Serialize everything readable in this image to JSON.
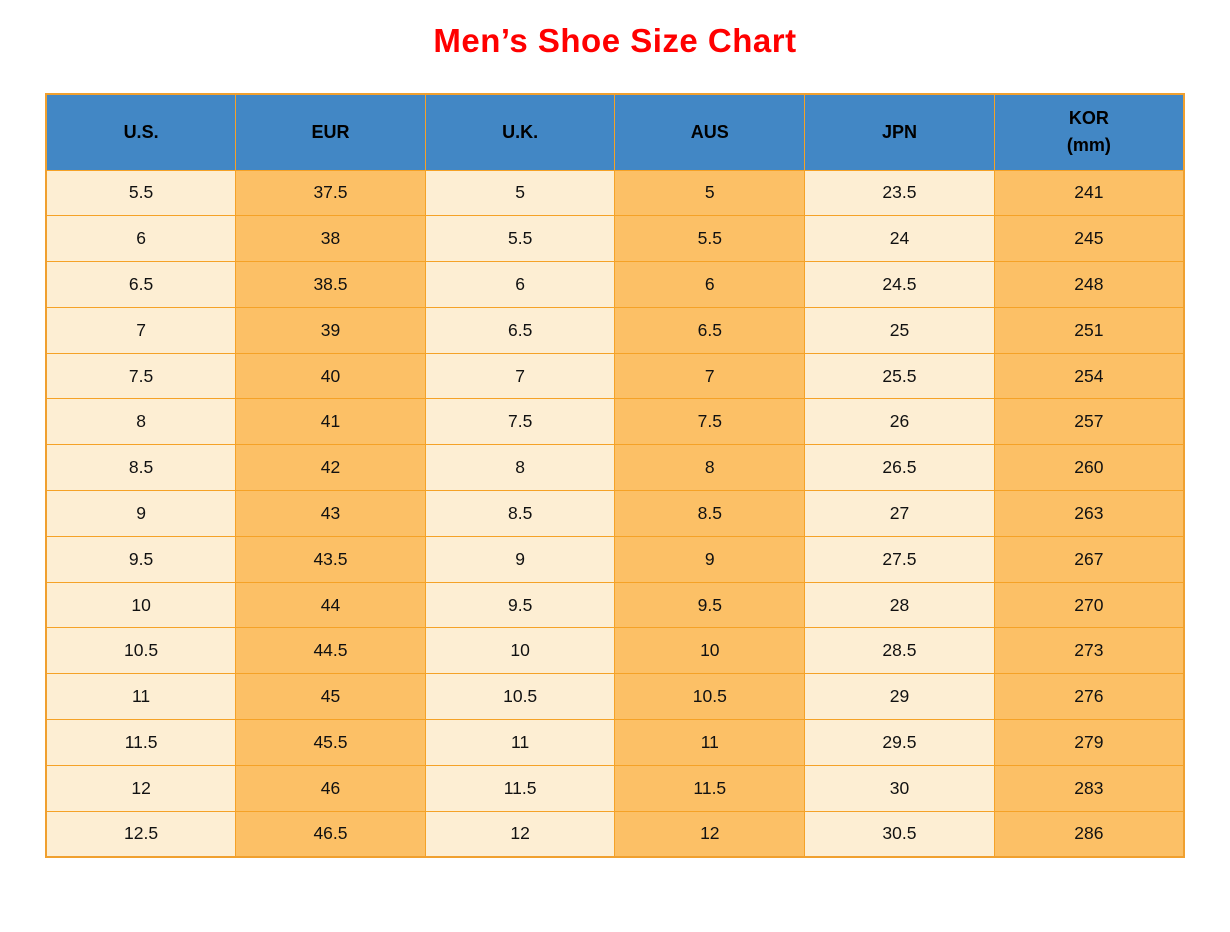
{
  "title": "Men’s Shoe Size Chart",
  "colors": {
    "title_text": "#ff0000",
    "header_background": "#4287c5",
    "header_text": "#000000",
    "column_cream": "#fdeed3",
    "column_orange": "#fcc066",
    "grid_border": "#f5a227",
    "page_background": "#ffffff"
  },
  "chart_data": {
    "type": "table",
    "title": "Men’s Shoe Size Chart",
    "columns": [
      {
        "id": "us",
        "label": "U.S."
      },
      {
        "id": "eur",
        "label": "EUR"
      },
      {
        "id": "uk",
        "label": "U.K."
      },
      {
        "id": "aus",
        "label": "AUS"
      },
      {
        "id": "jpn",
        "label": "JPN"
      },
      {
        "id": "kor",
        "label": "KOR\n(mm)"
      }
    ],
    "rows": [
      [
        "5.5",
        "37.5",
        "5",
        "5",
        "23.5",
        "241"
      ],
      [
        "6",
        "38",
        "5.5",
        "5.5",
        "24",
        "245"
      ],
      [
        "6.5",
        "38.5",
        "6",
        "6",
        "24.5",
        "248"
      ],
      [
        "7",
        "39",
        "6.5",
        "6.5",
        "25",
        "251"
      ],
      [
        "7.5",
        "40",
        "7",
        "7",
        "25.5",
        "254"
      ],
      [
        "8",
        "41",
        "7.5",
        "7.5",
        "26",
        "257"
      ],
      [
        "8.5",
        "42",
        "8",
        "8",
        "26.5",
        "260"
      ],
      [
        "9",
        "43",
        "8.5",
        "8.5",
        "27",
        "263"
      ],
      [
        "9.5",
        "43.5",
        "9",
        "9",
        "27.5",
        "267"
      ],
      [
        "10",
        "44",
        "9.5",
        "9.5",
        "28",
        "270"
      ],
      [
        "10.5",
        "44.5",
        "10",
        "10",
        "28.5",
        "273"
      ],
      [
        "11",
        "45",
        "10.5",
        "10.5",
        "29",
        "276"
      ],
      [
        "11.5",
        "45.5",
        "11",
        "11",
        "29.5",
        "279"
      ],
      [
        "12",
        "46",
        "11.5",
        "11.5",
        "30",
        "283"
      ],
      [
        "12.5",
        "46.5",
        "12",
        "12",
        "30.5",
        "286"
      ]
    ]
  }
}
